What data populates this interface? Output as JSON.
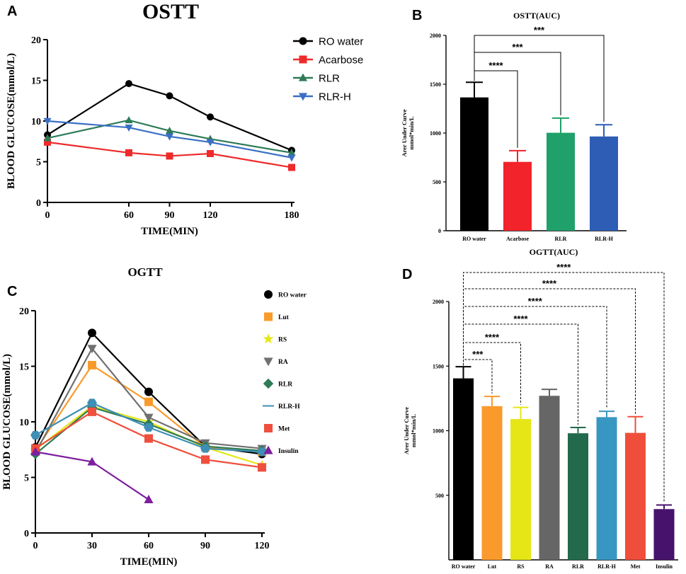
{
  "chart_data": [
    {
      "panel": "A",
      "type": "line",
      "title": "OSTT",
      "xlabel": "TIME(MIN)",
      "ylabel": "BLOOD GLUCOSE(mmol/L)",
      "xlim": [
        0,
        180
      ],
      "ylim": [
        0,
        20
      ],
      "xticks": [
        0,
        60,
        90,
        120,
        180
      ],
      "yticks": [
        0,
        5,
        10,
        15,
        20
      ],
      "x": [
        0,
        60,
        90,
        120,
        180
      ],
      "legend_position": "top-right",
      "series": [
        {
          "name": "RO water",
          "color": "#000000",
          "marker": "circle",
          "values": [
            8.3,
            14.6,
            13.1,
            10.5,
            6.4
          ]
        },
        {
          "name": "Acarbose",
          "color": "#ee2a2a",
          "marker": "square",
          "values": [
            7.4,
            6.1,
            5.7,
            6.0,
            4.3
          ]
        },
        {
          "name": "RLR",
          "color": "#2d7b57",
          "marker": "triangle-up",
          "values": [
            7.9,
            10.1,
            8.8,
            7.8,
            6.1
          ]
        },
        {
          "name": "RLR-H",
          "color": "#3a6fc4",
          "marker": "triangle-down",
          "values": [
            10.0,
            9.2,
            8.1,
            7.4,
            5.5
          ]
        }
      ]
    },
    {
      "panel": "B",
      "type": "bar",
      "title": "OSTT(AUC)",
      "ylabel": "Arer Under Curve mmol*min/L",
      "ylabel_lines": [
        "Arer Under Curve",
        "mmol*min/L"
      ],
      "ylim": [
        0,
        2000
      ],
      "yticks": [
        0,
        500,
        1000,
        1500,
        2000
      ],
      "categories": [
        "RO water",
        "Acarbose",
        "RLR",
        "RLR-H"
      ],
      "values": [
        1365,
        705,
        1003,
        965
      ],
      "errors": [
        155,
        115,
        150,
        120
      ],
      "colors": [
        "#000000",
        "#f2232a",
        "#20a06a",
        "#2e5db6"
      ],
      "significance": [
        {
          "from": 0,
          "to": 1,
          "label": "****"
        },
        {
          "from": 0,
          "to": 2,
          "label": "***"
        },
        {
          "from": 0,
          "to": 3,
          "label": "***"
        }
      ]
    },
    {
      "panel": "C",
      "type": "line",
      "title": "OGTT",
      "xlabel": "TIME(MIN)",
      "ylabel": "BLOOD GLUCOSE(mmol/L)",
      "xlim": [
        0,
        120
      ],
      "ylim": [
        0,
        20
      ],
      "xticks": [
        0,
        30,
        60,
        90,
        120
      ],
      "yticks": [
        0,
        5,
        10,
        15,
        20
      ],
      "x": [
        0,
        30,
        60,
        90,
        120
      ],
      "legend_position": "right",
      "series": [
        {
          "name": "RO water",
          "color": "#000000",
          "marker": "circle",
          "values": [
            7.7,
            18.0,
            12.7,
            7.8,
            7.1
          ]
        },
        {
          "name": "Lut",
          "color": "#f99b2a",
          "marker": "square",
          "values": [
            7.4,
            15.1,
            11.8,
            7.7,
            7.3
          ]
        },
        {
          "name": "RS",
          "color": "#e6e619",
          "marker": "star",
          "values": [
            7.5,
            11.4,
            10.0,
            7.7,
            6.1
          ]
        },
        {
          "name": "RA",
          "color": "#707070",
          "marker": "triangle-down",
          "values": [
            7.2,
            16.6,
            10.4,
            8.1,
            7.6
          ]
        },
        {
          "name": "RLR",
          "color": "#2d7b57",
          "marker": "diamond",
          "values": [
            7.1,
            11.3,
            9.8,
            7.8,
            7.4
          ]
        },
        {
          "name": "RLR-H",
          "color": "#3d8fb5",
          "marker": "hexagon",
          "values": [
            8.8,
            11.7,
            9.5,
            7.6,
            7.3
          ]
        },
        {
          "name": "Met",
          "color": "#ef4f3d",
          "marker": "square",
          "values": [
            7.6,
            10.9,
            8.5,
            6.6,
            5.9
          ]
        },
        {
          "name": "Insulin",
          "color": "#7d1f9e",
          "marker": "triangle-up",
          "values": [
            7.3,
            6.4,
            3.0,
            null,
            null
          ]
        }
      ]
    },
    {
      "panel": "D",
      "type": "bar",
      "title": "OGTT(AUC)",
      "ylabel": "Arer Under Curve mmol*min/L",
      "ylabel_lines": [
        "Arer Under Curve",
        "mmol*min/L"
      ],
      "ylim": [
        0,
        2000
      ],
      "yticks": [
        500,
        1000,
        1500,
        2000
      ],
      "categories": [
        "RO water",
        "Lut",
        "RS",
        "RA",
        "RLR",
        "RLR-H",
        "Met",
        "Insulin"
      ],
      "values": [
        1405,
        1190,
        1090,
        1270,
        980,
        1105,
        983,
        393
      ],
      "errors": [
        90,
        75,
        90,
        50,
        45,
        45,
        125,
        32
      ],
      "colors": [
        "#000000",
        "#fa9a2c",
        "#e6e616",
        "#666666",
        "#236a4c",
        "#3897c2",
        "#ef4e3b",
        "#47126b"
      ],
      "significance": [
        {
          "from": 0,
          "to": 1,
          "label": "***"
        },
        {
          "from": 0,
          "to": 2,
          "label": "****"
        },
        {
          "from": 0,
          "to": 4,
          "label": "****"
        },
        {
          "from": 0,
          "to": 5,
          "label": "****"
        },
        {
          "from": 0,
          "to": 6,
          "label": "****"
        },
        {
          "from": 0,
          "to": 7,
          "label": "****"
        }
      ]
    }
  ]
}
